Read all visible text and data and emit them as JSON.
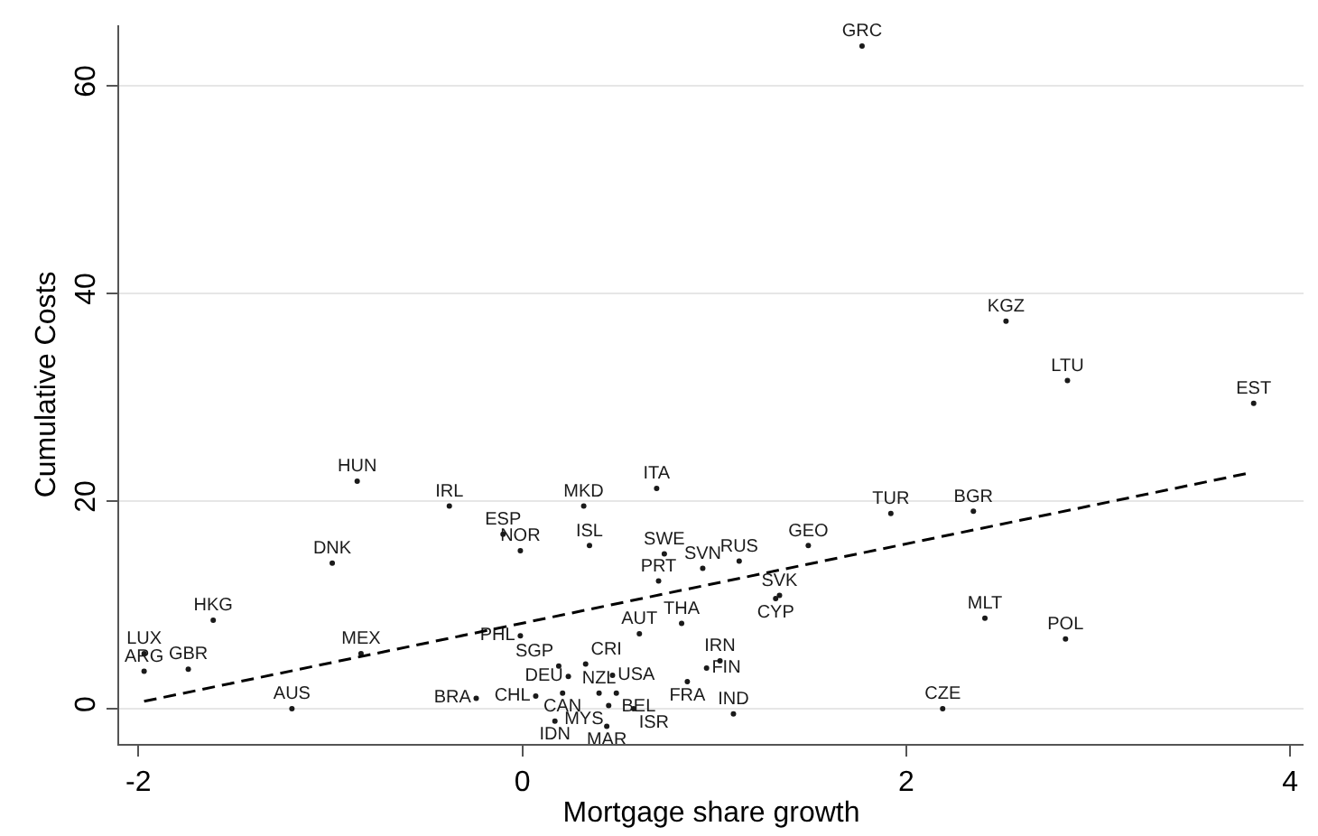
{
  "chart_data": {
    "type": "scatter",
    "xlabel": "Mortgage share growth",
    "ylabel": "Cumulative Costs",
    "xlim": [
      -2.1,
      4.07
    ],
    "ylim": [
      -3.4,
      65.8
    ],
    "xticks": [
      -2,
      0,
      2,
      4
    ],
    "yticks": [
      0,
      20,
      40,
      60
    ],
    "grid": "y",
    "series": [
      {
        "marker": "circle",
        "color": "#1a1a1a",
        "x": [
          1.77,
          2.52,
          2.84,
          3.81,
          -0.86,
          -0.38,
          0.32,
          0.7,
          -0.1,
          -0.01,
          0.35,
          0.74,
          0.94,
          1.13,
          0.71,
          1.49,
          1.92,
          2.35,
          -0.99,
          -1.61,
          -1.97,
          -1.97,
          -1.74,
          -0.84,
          -1.2,
          -0.01,
          0.61,
          0.83,
          1.34,
          1.32,
          2.41,
          2.83,
          1.03,
          0.96,
          0.86,
          0.47,
          0.58,
          1.1,
          2.19,
          -0.24,
          0.17,
          0.44,
          0.19,
          0.33,
          0.24,
          0.07,
          0.21,
          0.4,
          0.49,
          0.45
        ],
        "values": [
          63.8,
          37.3,
          31.6,
          29.4,
          21.9,
          19.5,
          19.5,
          21.2,
          16.8,
          15.2,
          15.7,
          14.9,
          13.5,
          14.2,
          12.3,
          15.7,
          18.8,
          19.0,
          14.0,
          8.5,
          5.3,
          3.6,
          3.8,
          5.3,
          0.0,
          7.0,
          7.2,
          8.2,
          10.9,
          10.6,
          8.7,
          6.7,
          4.6,
          3.9,
          2.6,
          3.2,
          0.0,
          -0.5,
          0.0,
          1.0,
          -1.2,
          -1.7,
          4.1,
          4.3,
          3.1,
          1.2,
          1.5,
          1.5,
          1.5,
          0.3
        ],
        "value_labels": [
          "GRC",
          "KGZ",
          "LTU",
          "EST",
          "HUN",
          "IRL",
          "MKD",
          "ITA",
          "ESP",
          "NOR",
          "ISL",
          "SWE",
          "SVN",
          "RUS",
          "PRT",
          "GEO",
          "TUR",
          "BGR",
          "DNK",
          "HKG",
          "LUX",
          "ARG",
          "GBR",
          "MEX",
          "AUS",
          "PHL",
          "AUT",
          "THA",
          "SVK",
          "CYP",
          "MLT",
          "POL",
          "IRN",
          "FIN",
          "FRA",
          "USA",
          "ISR",
          "IND",
          "CZE",
          "BRA",
          "IDN",
          "MAR",
          "SGP",
          "CRI",
          "DEU",
          "CHL",
          "CAN",
          "NZL",
          "BEL",
          "MYS"
        ]
      },
      {
        "type": "line",
        "line_style": "dashed",
        "color": "#000000",
        "x": [
          -1.97,
          3.79
        ],
        "values": [
          0.7,
          22.7
        ]
      }
    ]
  }
}
